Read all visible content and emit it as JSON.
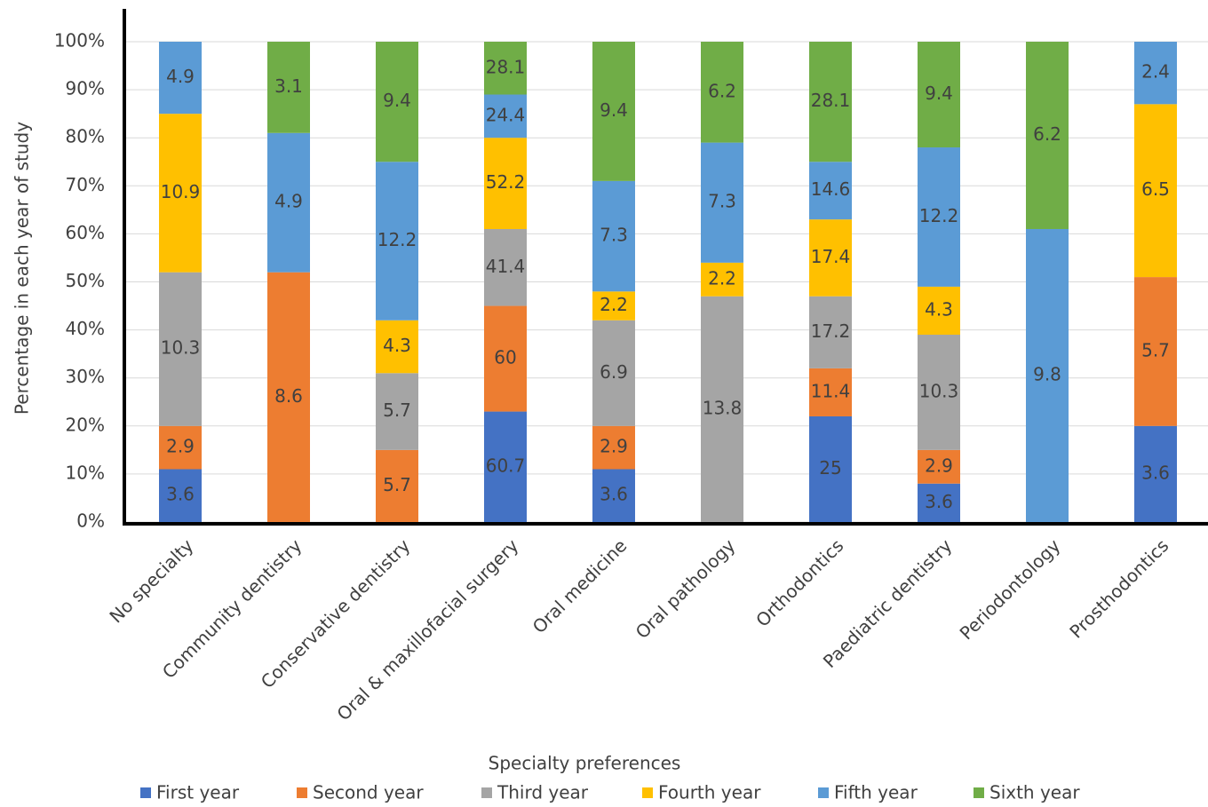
{
  "chart_data": {
    "type": "stacked_bar",
    "x_label": "Specialty preferences",
    "y_label": "Percentage in each year of study",
    "categories": [
      "No specialty",
      "Community dentistry",
      "Conservative dentistry",
      "Oral & maxillofacial surgery",
      "Oral medicine",
      "Oral pathology",
      "Orthodontics",
      "Paediatric dentistry",
      "Periodontology",
      "Prosthodontics"
    ],
    "series": [
      {
        "name": "First year",
        "color": "#4472c4",
        "values": [
          11,
          0,
          0,
          23,
          11,
          0,
          22,
          8,
          0,
          20
        ],
        "labels": [
          3.6,
          null,
          null,
          60.7,
          3.6,
          null,
          25,
          3.6,
          null,
          3.6
        ]
      },
      {
        "name": "Second year",
        "color": "#ed7d31",
        "values": [
          9,
          52,
          15,
          22,
          9,
          0,
          10,
          7,
          0,
          31
        ],
        "labels": [
          2.9,
          8.6,
          5.7,
          60,
          2.9,
          null,
          11.4,
          2.9,
          null,
          5.7
        ]
      },
      {
        "name": "Third year",
        "color": "#a5a5a5",
        "values": [
          32,
          0,
          16,
          16,
          22,
          47,
          15,
          24,
          0,
          0
        ],
        "labels": [
          10.3,
          null,
          5.7,
          41.4,
          6.9,
          13.8,
          17.2,
          10.3,
          null,
          null
        ]
      },
      {
        "name": "Fourth year",
        "color": "#ffc000",
        "values": [
          33,
          0,
          11,
          19,
          6,
          7,
          16,
          10,
          0,
          36
        ],
        "labels": [
          10.9,
          null,
          4.3,
          52.2,
          2.2,
          2.2,
          17.4,
          4.3,
          null,
          6.5
        ]
      },
      {
        "name": "Fifth year",
        "color": "#5b9bd5",
        "values": [
          15,
          29,
          33,
          9,
          23,
          25,
          12,
          29,
          61,
          13
        ],
        "labels": [
          4.9,
          4.9,
          12.2,
          24.4,
          7.3,
          7.3,
          14.6,
          12.2,
          9.8,
          2.4
        ]
      },
      {
        "name": "Sixth year",
        "color": "#70ad47",
        "values": [
          0,
          19,
          25,
          11,
          29,
          21,
          25,
          22,
          39,
          0
        ],
        "labels": [
          null,
          3.1,
          9.4,
          28.1,
          9.4,
          6.2,
          28.1,
          9.4,
          6.2,
          null
        ]
      }
    ],
    "ylim": [
      0,
      100
    ],
    "yticks": [
      {
        "value": 0,
        "label": "0%"
      },
      {
        "value": 10,
        "label": "10%"
      },
      {
        "value": 20,
        "label": "20%"
      },
      {
        "value": 30,
        "label": "30%"
      },
      {
        "value": 40,
        "label": "40%"
      },
      {
        "value": 50,
        "label": "50%"
      },
      {
        "value": 60,
        "label": "60%"
      },
      {
        "value": 70,
        "label": "70%"
      },
      {
        "value": 80,
        "label": "80%"
      },
      {
        "value": 90,
        "label": "90%"
      },
      {
        "value": 100,
        "label": "100%"
      }
    ],
    "grid": true
  }
}
